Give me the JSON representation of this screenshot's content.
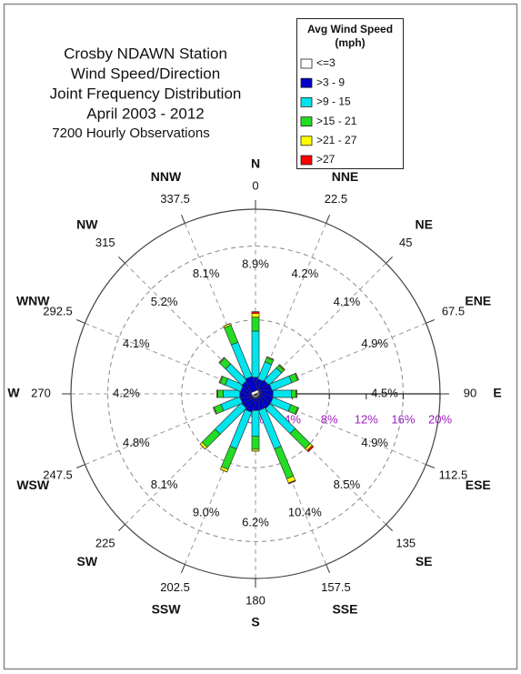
{
  "chart_data": {
    "type": "windrose",
    "title": [
      "Crosby NDAWN Station",
      "Wind Speed/Direction",
      "Joint Frequency Distribution",
      "April 2003 - 2012"
    ],
    "subtitle": "7200 Hourly Observations",
    "legend_title": [
      "Avg Wind Speed",
      "(mph)"
    ],
    "directions": [
      "N",
      "NNE",
      "NE",
      "ENE",
      "E",
      "ESE",
      "SE",
      "SSE",
      "S",
      "SSW",
      "SW",
      "WSW",
      "W",
      "WNW",
      "NW",
      "NNW"
    ],
    "degrees": [
      0,
      22.5,
      45,
      67.5,
      90,
      112.5,
      135,
      157.5,
      180,
      202.5,
      225,
      247.5,
      270,
      292.5,
      315,
      337.5
    ],
    "direction_labels": [
      "8.9%",
      "4.2%",
      "4.1%",
      "4.9%",
      "4.5%",
      "4.9%",
      "8.5%",
      "10.4%",
      "6.2%",
      "9.0%",
      "8.1%",
      "4.8%",
      "4.2%",
      "4.1%",
      "5.2%",
      "8.1%"
    ],
    "series": [
      {
        "name": "<=3",
        "color": "#ffffff",
        "values": [
          0.3,
          0.3,
          0.3,
          0.3,
          0.4,
          0.4,
          0.3,
          0.3,
          0.3,
          0.3,
          0.3,
          0.3,
          0.3,
          0.3,
          0.3,
          0.3
        ]
      },
      {
        "name": ">3 - 9",
        "color": "#0000c8",
        "values": [
          1.5,
          1.3,
          1.4,
          1.5,
          1.5,
          1.5,
          1.6,
          1.5,
          1.5,
          1.7,
          1.5,
          1.4,
          1.4,
          1.3,
          1.4,
          1.6
        ]
      },
      {
        "name": ">9 - 15",
        "color": "#00e5ee",
        "values": [
          5.0,
          2.0,
          1.9,
          2.3,
          2.0,
          2.1,
          3.8,
          4.5,
          2.8,
          4.3,
          4.0,
          2.2,
          1.8,
          1.8,
          2.5,
          4.0
        ]
      },
      {
        "name": ">15 - 21",
        "color": "#22dd22",
        "values": [
          1.5,
          0.5,
          0.4,
          0.7,
          0.5,
          0.8,
          2.3,
          3.5,
          1.4,
          2.4,
          2.0,
          0.8,
          0.6,
          0.6,
          0.9,
          2.0
        ]
      },
      {
        "name": ">21 - 27",
        "color": "#ffff00",
        "values": [
          0.4,
          0.1,
          0.1,
          0.1,
          0.1,
          0.1,
          0.3,
          0.5,
          0.2,
          0.3,
          0.3,
          0.1,
          0.1,
          0.1,
          0.1,
          0.2
        ]
      },
      {
        "name": ">27",
        "color": "#ff0000",
        "values": [
          0.2,
          0,
          0,
          0,
          0,
          0,
          0.2,
          0.1,
          0,
          0,
          0,
          0,
          0,
          0,
          0,
          0
        ]
      }
    ],
    "rlim": [
      0,
      20
    ],
    "rticks": [
      {
        "value": 0,
        "label": "0%"
      },
      {
        "value": 4,
        "label": "4%"
      },
      {
        "value": 8,
        "label": "8%"
      },
      {
        "value": 12,
        "label": "12%"
      },
      {
        "value": 16,
        "label": "16%"
      },
      {
        "value": 20,
        "label": "20%"
      }
    ],
    "grid": true
  }
}
